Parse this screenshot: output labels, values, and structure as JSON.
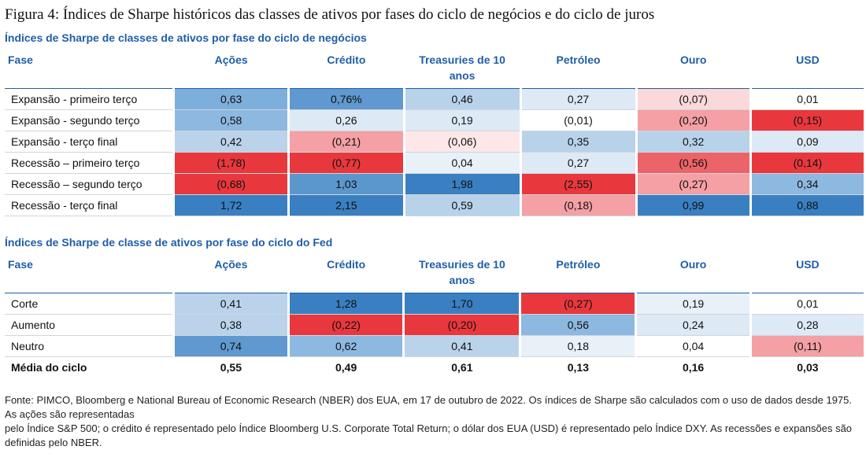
{
  "title": "Figura 4: Índices de Sharpe históricos das classes de ativos por fases do ciclo de negócios e do ciclo de juros",
  "tables": [
    {
      "subtitle": "Índices de Sharpe de classes de ativos por fase do ciclo de negócios",
      "columns": [
        "Fase",
        "Ações",
        "Crédito",
        "Treasuries de 10 anos",
        "Petróleo",
        "Ouro",
        "USD"
      ],
      "rows": [
        {
          "cells": [
            "Expansão - primeiro terço",
            "0,63",
            "0,76%",
            "0,46",
            "0,27",
            "(0,07)",
            "0,01"
          ],
          "colors": [
            "#ffffff",
            "#7eaedb",
            "#5f99cf",
            "#b8d2ea",
            "#dde9f5",
            "#fbd8da",
            "#ffffff"
          ]
        },
        {
          "cells": [
            "Expansão - segundo terço",
            "0,58",
            "0,26",
            "0,19",
            "(0,01)",
            "(0,20)",
            "(0,15)"
          ],
          "colors": [
            "#ffffff",
            "#8db8e0",
            "#dde9f5",
            "#dde9f5",
            "#ffffff",
            "#f4a0a4",
            "#e8383d"
          ]
        },
        {
          "cells": [
            "Expansão - terço final",
            "0,42",
            "(0,21)",
            "(0,06)",
            "0,35",
            "0,32",
            "0,09"
          ],
          "colors": [
            "#ffffff",
            "#bad3eb",
            "#f4a0a4",
            "#fde7e8",
            "#b8d2ea",
            "#b8d2ea",
            "#dde9f5"
          ]
        },
        {
          "cells": [
            "Recessão – primeiro terço",
            "(1,78)",
            "(0,77)",
            "0,04",
            "0,27",
            "(0,56)",
            "(0,14)"
          ],
          "colors": [
            "#ffffff",
            "#e8383d",
            "#e8383d",
            "#e8f0f8",
            "#dde9f5",
            "#ec6468",
            "#e8383d"
          ]
        },
        {
          "cells": [
            "Recessão – segundo terço",
            "(0,68)",
            "1,03",
            "1,98",
            "(2,55)",
            "(0,27)",
            "0,34"
          ],
          "colors": [
            "#ffffff",
            "#e8383d",
            "#5b97cd",
            "#3a7fc1",
            "#e8383d",
            "#f4a0a4",
            "#8db8e0"
          ]
        },
        {
          "cells": [
            "Recessão - terço final",
            "1,72",
            "2,15",
            "0,59",
            "(0,18)",
            "0,99",
            "0,88"
          ],
          "colors": [
            "#ffffff",
            "#3a7fc1",
            "#3a7fc1",
            "#b8d2ea",
            "#f4a0a4",
            "#3a7fc1",
            "#3a7fc1"
          ]
        }
      ]
    },
    {
      "subtitle": "Índices de Sharpe de classe de ativos por fase do ciclo do Fed",
      "columns": [
        "Fase",
        "Ações",
        "Crédito",
        "Treasuries de 10 anos",
        "Petróleo",
        "Ouro",
        "USD"
      ],
      "rows": [
        {
          "cells": [
            "Corte",
            "0,41",
            "1,28",
            "1,70",
            "(0,27)",
            "0,19",
            "0,01"
          ],
          "colors": [
            "#ffffff",
            "#bad3eb",
            "#3a7fc1",
            "#3a7fc1",
            "#e8383d",
            "#e8f0f8",
            "#ffffff"
          ]
        },
        {
          "cells": [
            "Aumento",
            "0,38",
            "(0,22)",
            "(0,20)",
            "0,56",
            "0,24",
            "0,28"
          ],
          "colors": [
            "#ffffff",
            "#bad3eb",
            "#e8383d",
            "#e8383d",
            "#8db8e0",
            "#dde9f5",
            "#dde9f5"
          ]
        },
        {
          "cells": [
            "Neutro",
            "0,74",
            "0,62",
            "0,41",
            "0,18",
            "0,04",
            "(0,11)"
          ],
          "colors": [
            "#ffffff",
            "#5f99cf",
            "#8db8e0",
            "#bad3eb",
            "#e8f0f8",
            "#ffffff",
            "#f4a0a4"
          ]
        }
      ],
      "summary": [
        "Média do ciclo",
        "0,55",
        "0,49",
        "0,61",
        "0,13",
        "0,16",
        "0,03"
      ]
    }
  ],
  "footer": [
    "Fonte: PIMCO, Bloomberg e National Bureau of Economic Research (NBER) dos EUA, em 17 de outubro de 2022. Os índices de Sharpe são calculados com o uso de dados desde 1975.",
    "As ações são representadas",
    "pelo Índice S&P 500; o crédito é representado pelo Índice Bloomberg U.S. Corporate Total Return; o dólar dos EUA (USD) é representado pelo Índice DXY. As recessões e expansões são",
    "definidas pelo NBER."
  ]
}
